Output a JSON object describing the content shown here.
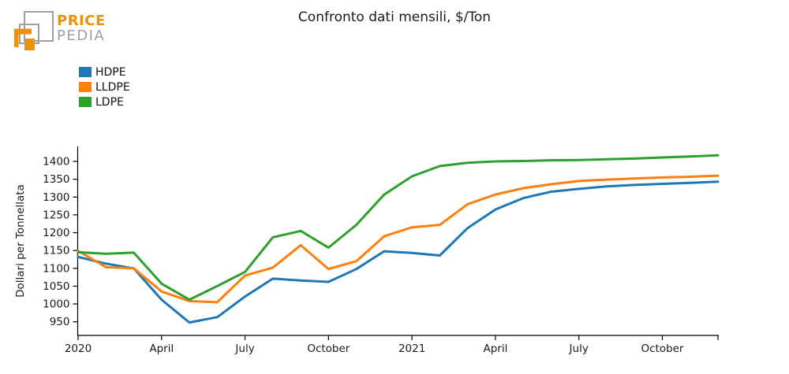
{
  "logo": {
    "brand_top": "PRICE",
    "brand_bottom": "PEDIA",
    "orange": "#E8920E",
    "gray": "#9E9E9E"
  },
  "header": {
    "title": "Confronto dati mensili, $/Ton"
  },
  "legend": {
    "items": [
      {
        "label": "HDPE",
        "color": "#1f77b4"
      },
      {
        "label": "LLDPE",
        "color": "#ff7f0e"
      },
      {
        "label": "LDPE",
        "color": "#2ca02c"
      }
    ]
  },
  "chart_data": {
    "type": "line",
    "title": "Confronto dati mensili, $/Ton",
    "xlabel": "",
    "ylabel": "Dollari per Tonnellata",
    "x_months": [
      "2020-01",
      "2020-02",
      "2020-03",
      "2020-04",
      "2020-05",
      "2020-06",
      "2020-07",
      "2020-08",
      "2020-09",
      "2020-10",
      "2020-11",
      "2020-12",
      "2021-01",
      "2021-02",
      "2021-03",
      "2021-04",
      "2021-05",
      "2021-06",
      "2021-07",
      "2021-08",
      "2021-09",
      "2021-10",
      "2021-11",
      "2021-12"
    ],
    "x_tick_indices": [
      0,
      3,
      6,
      9,
      12,
      15,
      18,
      21
    ],
    "x_tick_labels": [
      "2020",
      "April",
      "July",
      "October",
      "2021",
      "April",
      "July",
      "October"
    ],
    "extra_unlabeled_tick_index": 23,
    "y_ticks": [
      950,
      1000,
      1050,
      1100,
      1150,
      1200,
      1250,
      1300,
      1350,
      1400
    ],
    "ylim": [
      912,
      1444
    ],
    "grid": false,
    "legend_position": "upper-left",
    "series": [
      {
        "name": "HDPE",
        "color": "#1f77b4",
        "values": [
          1132,
          1113,
          1100,
          1012,
          948,
          963,
          1021,
          1071,
          1066,
          1062,
          1098,
          1148,
          1143,
          1136,
          1213,
          1265,
          1297,
          1315,
          1323,
          1330,
          1334,
          1337,
          1340,
          1343
        ]
      },
      {
        "name": "LLDPE",
        "color": "#ff7f0e",
        "values": [
          1149,
          1103,
          1100,
          1035,
          1008,
          1005,
          1080,
          1102,
          1165,
          1098,
          1120,
          1190,
          1215,
          1222,
          1280,
          1307,
          1325,
          1336,
          1345,
          1349,
          1352,
          1355,
          1357,
          1360
        ]
      },
      {
        "name": "LDPE",
        "color": "#2ca02c",
        "values": [
          1145,
          1141,
          1144,
          1057,
          1012,
          1050,
          1090,
          1187,
          1205,
          1158,
          1222,
          1307,
          1358,
          1387,
          1396,
          1400,
          1401,
          1403,
          1404,
          1406,
          1408,
          1411,
          1414,
          1417
        ]
      }
    ]
  }
}
